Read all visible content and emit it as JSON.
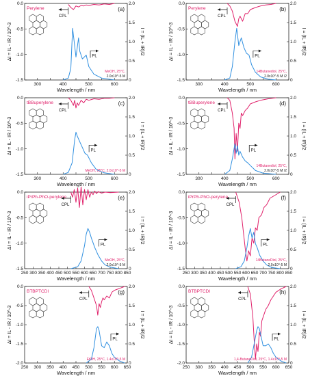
{
  "colors": {
    "cpl": "#e0206a",
    "pl": "#2f8fe0",
    "axis": "#222222"
  },
  "chart_data": [
    {
      "panel": "(a)",
      "type": "line",
      "compound": "Perylene",
      "note_lines": [
        "MeOH, 25°C,",
        "2.0x10^-5 M"
      ],
      "xlabel": "Wavelength / nm",
      "ylabel_left": "ΔI = IL - IR / 10^-3",
      "ylabel_right": "I = (IL + IR)/2",
      "xlim": [
        250,
        650
      ],
      "ylim_left": [
        -1.5,
        0.0
      ],
      "ylim_right": [
        0,
        2.0
      ],
      "xticks": [
        250,
        300,
        350,
        400,
        450,
        500,
        550,
        600,
        650
      ],
      "xtick_labels": [
        "",
        "300",
        "",
        "400",
        "",
        "500",
        "",
        "600",
        ""
      ],
      "yticks_left": [
        "0.0",
        "-0.5",
        "-1.0",
        "-1.5"
      ],
      "yticks_right": [
        "2.0",
        "1.5",
        "1.0",
        "0.5",
        "0"
      ],
      "cpl_label": "CPL",
      "pl_label": "PL",
      "series": [
        {
          "name": "CPL",
          "axis": "left",
          "x": [
            420,
            430,
            440,
            450,
            460,
            470,
            480,
            490,
            500,
            520,
            540,
            560,
            580,
            600
          ],
          "y": [
            -0.02,
            -0.08,
            -0.12,
            -0.05,
            -0.07,
            -0.04,
            -0.05,
            -0.03,
            -0.04,
            -0.02,
            -0.03,
            -0.01,
            -0.02,
            0.0
          ]
        },
        {
          "name": "PL",
          "axis": "right",
          "x": [
            400,
            420,
            430,
            437,
            443,
            450,
            460,
            465,
            475,
            490,
            500,
            520,
            550,
            580,
            600
          ],
          "y": [
            0,
            0.05,
            0.3,
            1.35,
            1.0,
            0.6,
            1.1,
            0.75,
            0.55,
            0.65,
            0.35,
            0.15,
            0.05,
            0.02,
            0
          ]
        }
      ]
    },
    {
      "panel": "(b)",
      "type": "line",
      "compound": "Perylene",
      "note_lines": [
        "14Butanediol, 25°C,",
        "2.0x10^-5 M /2"
      ],
      "xlabel": "Wavelength / nm",
      "ylabel_left": "ΔI = IL - IR / 10^-3",
      "ylabel_right": "I = (IL + IR)/2",
      "xlim": [
        250,
        650
      ],
      "ylim_left": [
        -1.5,
        0.0
      ],
      "ylim_right": [
        0,
        2.0
      ],
      "xticks": [
        250,
        300,
        350,
        400,
        450,
        500,
        550,
        600,
        650
      ],
      "xtick_labels": [
        "",
        "300",
        "",
        "400",
        "",
        "500",
        "",
        "600",
        ""
      ],
      "yticks_left": [
        "0.0",
        "-0.5",
        "-1.0",
        "-1.5"
      ],
      "yticks_right": [
        "2.0",
        "1.5",
        "1.0",
        "0.5",
        "0"
      ],
      "cpl_label": "CPL",
      "pl_label": "PL",
      "series": [
        {
          "name": "CPL",
          "axis": "left",
          "x": [
            410,
            420,
            430,
            440,
            450,
            455,
            460,
            470,
            480,
            490,
            500,
            520,
            540,
            560,
            580,
            600
          ],
          "y": [
            0,
            -0.05,
            -0.15,
            -0.35,
            -0.45,
            -0.3,
            -0.25,
            -0.35,
            -0.2,
            -0.2,
            -0.12,
            -0.08,
            -0.05,
            -0.03,
            -0.02,
            0
          ]
        },
        {
          "name": "PL",
          "axis": "right",
          "x": [
            400,
            420,
            430,
            440,
            447,
            455,
            465,
            475,
            485,
            495,
            505,
            520,
            540,
            570,
            600
          ],
          "y": [
            0,
            0.05,
            0.35,
            1.0,
            1.35,
            0.9,
            1.1,
            0.85,
            0.7,
            0.65,
            0.4,
            0.2,
            0.08,
            0.02,
            0
          ]
        }
      ]
    },
    {
      "panel": "(c)",
      "type": "line",
      "compound": "tBBuperylene",
      "note_lines": [
        "MeOH, 25°C, 2.0x10^-5 M"
      ],
      "xlabel": "Wavelength / nm",
      "ylabel_left": "ΔI = IL - IR / 10^-3",
      "ylabel_right": "I = (IL + IR)/2",
      "xlim": [
        250,
        650
      ],
      "ylim_left": [
        -1.5,
        0.0
      ],
      "ylim_right": [
        0,
        2.0
      ],
      "xticks": [
        250,
        300,
        350,
        400,
        450,
        500,
        550,
        600,
        650
      ],
      "xtick_labels": [
        "",
        "300",
        "",
        "400",
        "",
        "500",
        "",
        "600",
        ""
      ],
      "yticks_left": [
        "0.0",
        "-0.5",
        "-1.0",
        "-1.5"
      ],
      "yticks_right": [
        "2.0",
        "1.5",
        "1.0",
        "0.5",
        "0"
      ],
      "cpl_label": "CPL",
      "pl_label": "PL",
      "series": [
        {
          "name": "CPL",
          "axis": "left",
          "x": [
            420,
            430,
            440,
            445,
            450,
            455,
            460,
            470,
            480,
            490,
            500,
            520,
            540,
            560,
            580,
            600
          ],
          "y": [
            0,
            -0.05,
            -0.15,
            -0.05,
            -0.2,
            -0.1,
            -0.15,
            -0.05,
            -0.1,
            -0.03,
            -0.05,
            -0.02,
            -0.03,
            -0.01,
            -0.01,
            0
          ]
        },
        {
          "name": "PL",
          "axis": "right",
          "x": [
            400,
            420,
            435,
            445,
            450,
            455,
            465,
            475,
            485,
            495,
            510,
            530,
            560,
            600
          ],
          "y": [
            0,
            0.05,
            0.3,
            0.9,
            1.1,
            1.0,
            0.85,
            0.7,
            0.55,
            0.5,
            0.3,
            0.12,
            0.04,
            0
          ]
        }
      ]
    },
    {
      "panel": "(d)",
      "type": "line",
      "compound": "tBBuperylene",
      "note_lines": [
        "14Butanediol, 25°C,",
        "2.0x10^-5 M /2"
      ],
      "xlabel": "Wavelength / nm",
      "ylabel_left": "ΔI = IL - IR / 10^-3",
      "ylabel_right": "I = (IL + IR)/2",
      "xlim": [
        250,
        650
      ],
      "ylim_left": [
        -1.5,
        0.0
      ],
      "ylim_right": [
        0,
        2.0
      ],
      "xticks": [
        250,
        300,
        350,
        400,
        450,
        500,
        550,
        600,
        650
      ],
      "xtick_labels": [
        "",
        "300",
        "",
        "400",
        "",
        "500",
        "",
        "600",
        ""
      ],
      "yticks_left": [
        "0.0",
        "-0.5",
        "-1.0",
        "-1.5"
      ],
      "yticks_right": [
        "2.0",
        "1.5",
        "1.0",
        "0.5",
        "0"
      ],
      "cpl_label": "CPL",
      "pl_label": "PL",
      "series": [
        {
          "name": "CPL",
          "axis": "left",
          "x": [
            410,
            420,
            430,
            437,
            440,
            445,
            450,
            455,
            460,
            465,
            470,
            480,
            490,
            500,
            520,
            540,
            570,
            600
          ],
          "y": [
            0,
            -0.05,
            -0.3,
            -0.6,
            -1.2,
            -0.7,
            -1.05,
            -0.5,
            -0.6,
            -0.3,
            -0.35,
            -0.25,
            -0.2,
            -0.12,
            -0.08,
            -0.05,
            -0.02,
            0
          ]
        },
        {
          "name": "PL",
          "axis": "right",
          "x": [
            400,
            420,
            430,
            440,
            445,
            450,
            455,
            460,
            470,
            480,
            490,
            505,
            520,
            550,
            600
          ],
          "y": [
            0,
            0.1,
            0.4,
            0.8,
            0.55,
            0.75,
            0.5,
            0.6,
            0.45,
            0.35,
            0.3,
            0.2,
            0.1,
            0.03,
            0
          ]
        }
      ]
    },
    {
      "panel": "(e)",
      "type": "line",
      "compound": "iPrPh-PhO-perylene",
      "note_lines": [
        "MeOH, 25°C,",
        "2.0x10^-5 M"
      ],
      "xlabel": "Wavelength / nm",
      "ylabel_left": "ΔI = IL - IR / 10^-3",
      "ylabel_right": "I = (IL + IR)/2",
      "xlim": [
        250,
        850
      ],
      "ylim_left": [
        -1.5,
        0.0
      ],
      "ylim_right": [
        0,
        2.0
      ],
      "xticks": [
        250,
        300,
        350,
        400,
        450,
        500,
        550,
        600,
        650,
        700,
        750,
        800,
        850
      ],
      "xtick_labels": [
        "250",
        "300",
        "350",
        "400",
        "450",
        "500",
        "550",
        "600",
        "650",
        "700",
        "750",
        "800",
        "850"
      ],
      "yticks_left": [
        "0.0",
        "-0.5",
        "-1.0",
        "-1.5"
      ],
      "yticks_right": [
        "2.0",
        "1.5",
        "1.0",
        "0.5",
        "0"
      ],
      "cpl_label": "CPL",
      "pl_label": "PL",
      "series": [
        {
          "name": "CPL",
          "axis": "left",
          "x": [
            520,
            530,
            540,
            550,
            560,
            570,
            580,
            590,
            600,
            610,
            620,
            630,
            640,
            650,
            660,
            670,
            680,
            700,
            720,
            750,
            800
          ],
          "y": [
            0,
            -0.1,
            0.05,
            -0.2,
            0.08,
            -0.3,
            0.1,
            -0.25,
            0.05,
            -0.15,
            0.05,
            -0.1,
            0.0,
            -0.05,
            0.02,
            -0.03,
            0.01,
            -0.02,
            0.0,
            -0.01,
            0
          ]
        },
        {
          "name": "PL",
          "axis": "right",
          "x": [
            520,
            560,
            580,
            600,
            610,
            620,
            630,
            640,
            660,
            680,
            700,
            720,
            750,
            800
          ],
          "y": [
            0,
            0.05,
            0.2,
            0.6,
            0.9,
            1.05,
            0.95,
            0.8,
            0.55,
            0.35,
            0.2,
            0.1,
            0.04,
            0
          ]
        }
      ]
    },
    {
      "panel": "(f)",
      "type": "line",
      "compound": "iPrPh-PhO-perylene",
      "note_lines": [
        "14ButaneDiol, 25°C,",
        "2.0x10^-5 M"
      ],
      "xlabel": "Wavelength / nm",
      "ylabel_left": "ΔI = IL - IR / 10^-3",
      "ylabel_right": "I = (IL + IR)/2",
      "xlim": [
        250,
        850
      ],
      "ylim_left": [
        -1.5,
        0.0
      ],
      "ylim_right": [
        0,
        2.0
      ],
      "xticks": [
        250,
        300,
        350,
        400,
        450,
        500,
        550,
        600,
        650,
        700,
        750,
        800,
        850
      ],
      "xtick_labels": [
        "250",
        "300",
        "350",
        "400",
        "450",
        "500",
        "550",
        "600",
        "650",
        "700",
        "750",
        "800",
        "850"
      ],
      "yticks_left": [
        "0.0",
        "-0.5",
        "-1.0",
        "-1.5"
      ],
      "yticks_right": [
        "2.0",
        "1.5",
        "1.0",
        "0.5",
        "0"
      ],
      "cpl_label": "CPL",
      "pl_label": "PL",
      "series": [
        {
          "name": "CPL",
          "axis": "left",
          "x": [
            540,
            560,
            575,
            585,
            595,
            605,
            615,
            625,
            635,
            645,
            655,
            665,
            675,
            690,
            705,
            720,
            740,
            760,
            800
          ],
          "y": [
            0,
            -0.2,
            -0.5,
            -0.8,
            -1.1,
            -1.35,
            -1.15,
            -1.25,
            -0.9,
            -1.0,
            -0.7,
            -0.75,
            -0.5,
            -0.45,
            -0.3,
            -0.25,
            -0.12,
            -0.08,
            0
          ]
        },
        {
          "name": "PL",
          "axis": "right",
          "x": [
            540,
            570,
            590,
            605,
            615,
            625,
            635,
            645,
            655,
            665,
            680,
            700,
            720,
            750,
            800
          ],
          "y": [
            0,
            0.05,
            0.2,
            0.55,
            0.85,
            1.05,
            0.8,
            0.95,
            0.65,
            0.55,
            0.35,
            0.2,
            0.1,
            0.03,
            0
          ]
        }
      ]
    },
    {
      "panel": "(g)",
      "type": "line",
      "compound": "BTBPTCDI",
      "note_lines": [
        "EtOH, 25°C, 1.4x10^-5 M"
      ],
      "xlabel": "Wavelength / nm",
      "ylabel_left": "ΔI = IL - IR / 10^-3",
      "ylabel_right": "I = (IL + IR)/2",
      "xlim": [
        250,
        650
      ],
      "ylim_left": [
        -2.0,
        0.0
      ],
      "ylim_right": [
        0,
        2.0
      ],
      "xticks": [
        250,
        300,
        350,
        400,
        450,
        500,
        550,
        600,
        650
      ],
      "xtick_labels": [
        "250",
        "300",
        "350",
        "400",
        "450",
        "500",
        "550",
        "600",
        "650"
      ],
      "yticks_left": [
        "0.0",
        "-0.5",
        "-1.0",
        "-1.5",
        "-2.0"
      ],
      "yticks_right": [
        "2.0",
        "1.5",
        "1.0",
        "0.5",
        "0"
      ],
      "cpl_label": "CPL",
      "pl_label": "PL",
      "series": [
        {
          "name": "CPL",
          "axis": "left",
          "x": [
            500,
            510,
            520,
            530,
            535,
            540,
            545,
            550,
            555,
            560,
            570,
            580,
            590,
            600,
            620,
            640
          ],
          "y": [
            0,
            -0.1,
            -0.3,
            -0.5,
            -0.75,
            -0.45,
            -0.55,
            -0.4,
            -0.3,
            -0.35,
            -0.25,
            -0.3,
            -0.15,
            -0.1,
            -0.05,
            0
          ]
        },
        {
          "name": "PL",
          "axis": "right",
          "x": [
            490,
            510,
            520,
            530,
            535,
            540,
            550,
            560,
            570,
            580,
            590,
            600,
            620,
            640
          ],
          "y": [
            0,
            0.1,
            0.4,
            0.9,
            0.95,
            0.85,
            0.45,
            0.4,
            0.55,
            0.45,
            0.25,
            0.15,
            0.05,
            0
          ]
        }
      ]
    },
    {
      "panel": "(h)",
      "type": "line",
      "compound": "BTBPTCDI",
      "note_lines": [
        "1,4-ButaneDiol, 25°C, 1.4x10^-5 M"
      ],
      "xlabel": "Wavelength / nm",
      "ylabel_left": "ΔI = IL - IR / 10^-3",
      "ylabel_right": "I = (IL + IR)/2",
      "xlim": [
        250,
        650
      ],
      "ylim_left": [
        -2.0,
        0.0
      ],
      "ylim_right": [
        0,
        2.0
      ],
      "xticks": [
        250,
        300,
        350,
        400,
        450,
        500,
        550,
        600,
        650
      ],
      "xtick_labels": [
        "250",
        "300",
        "350",
        "400",
        "450",
        "500",
        "550",
        "600",
        "650"
      ],
      "yticks_left": [
        "0.0",
        "-0.5",
        "-1.0",
        "-1.5",
        "-2.0"
      ],
      "yticks_right": [
        "2.0",
        "1.5",
        "1.0",
        "0.5",
        "0"
      ],
      "cpl_label": "CPL",
      "pl_label": "PL",
      "series": [
        {
          "name": "CPL",
          "axis": "left",
          "x": [
            490,
            500,
            510,
            515,
            520,
            525,
            530,
            535,
            540,
            545,
            550,
            560,
            570,
            580,
            590,
            600,
            620,
            640
          ],
          "y": [
            0,
            -0.2,
            -0.8,
            -1.4,
            -1.9,
            -1.5,
            -1.7,
            -1.2,
            -1.3,
            -0.9,
            -0.8,
            -0.6,
            -0.5,
            -0.35,
            -0.25,
            -0.15,
            -0.06,
            0
          ]
        },
        {
          "name": "PL",
          "axis": "right",
          "x": [
            490,
            505,
            515,
            525,
            530,
            535,
            540,
            550,
            560,
            570,
            580,
            590,
            600,
            620,
            640
          ],
          "y": [
            0,
            0.15,
            0.5,
            0.85,
            0.95,
            0.9,
            0.75,
            0.45,
            0.45,
            0.5,
            0.4,
            0.25,
            0.15,
            0.05,
            0
          ]
        }
      ]
    }
  ]
}
